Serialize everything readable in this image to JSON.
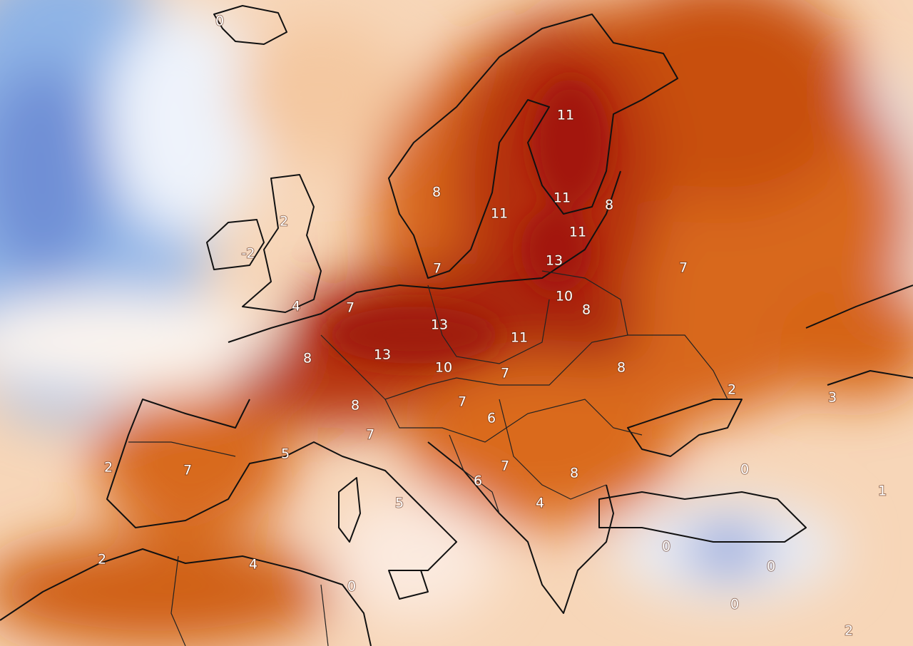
{
  "labels": [
    0,
    2,
    -2,
    4,
    7,
    8,
    11,
    11,
    11,
    8,
    11,
    13,
    7,
    7,
    10,
    8,
    13,
    11,
    8,
    13,
    10,
    7,
    8,
    2,
    3,
    8,
    7,
    6,
    7,
    5,
    2,
    7,
    0,
    7,
    8,
    6,
    1,
    5,
    4,
    0,
    0,
    2,
    4,
    0,
    0,
    2
  ]
}
